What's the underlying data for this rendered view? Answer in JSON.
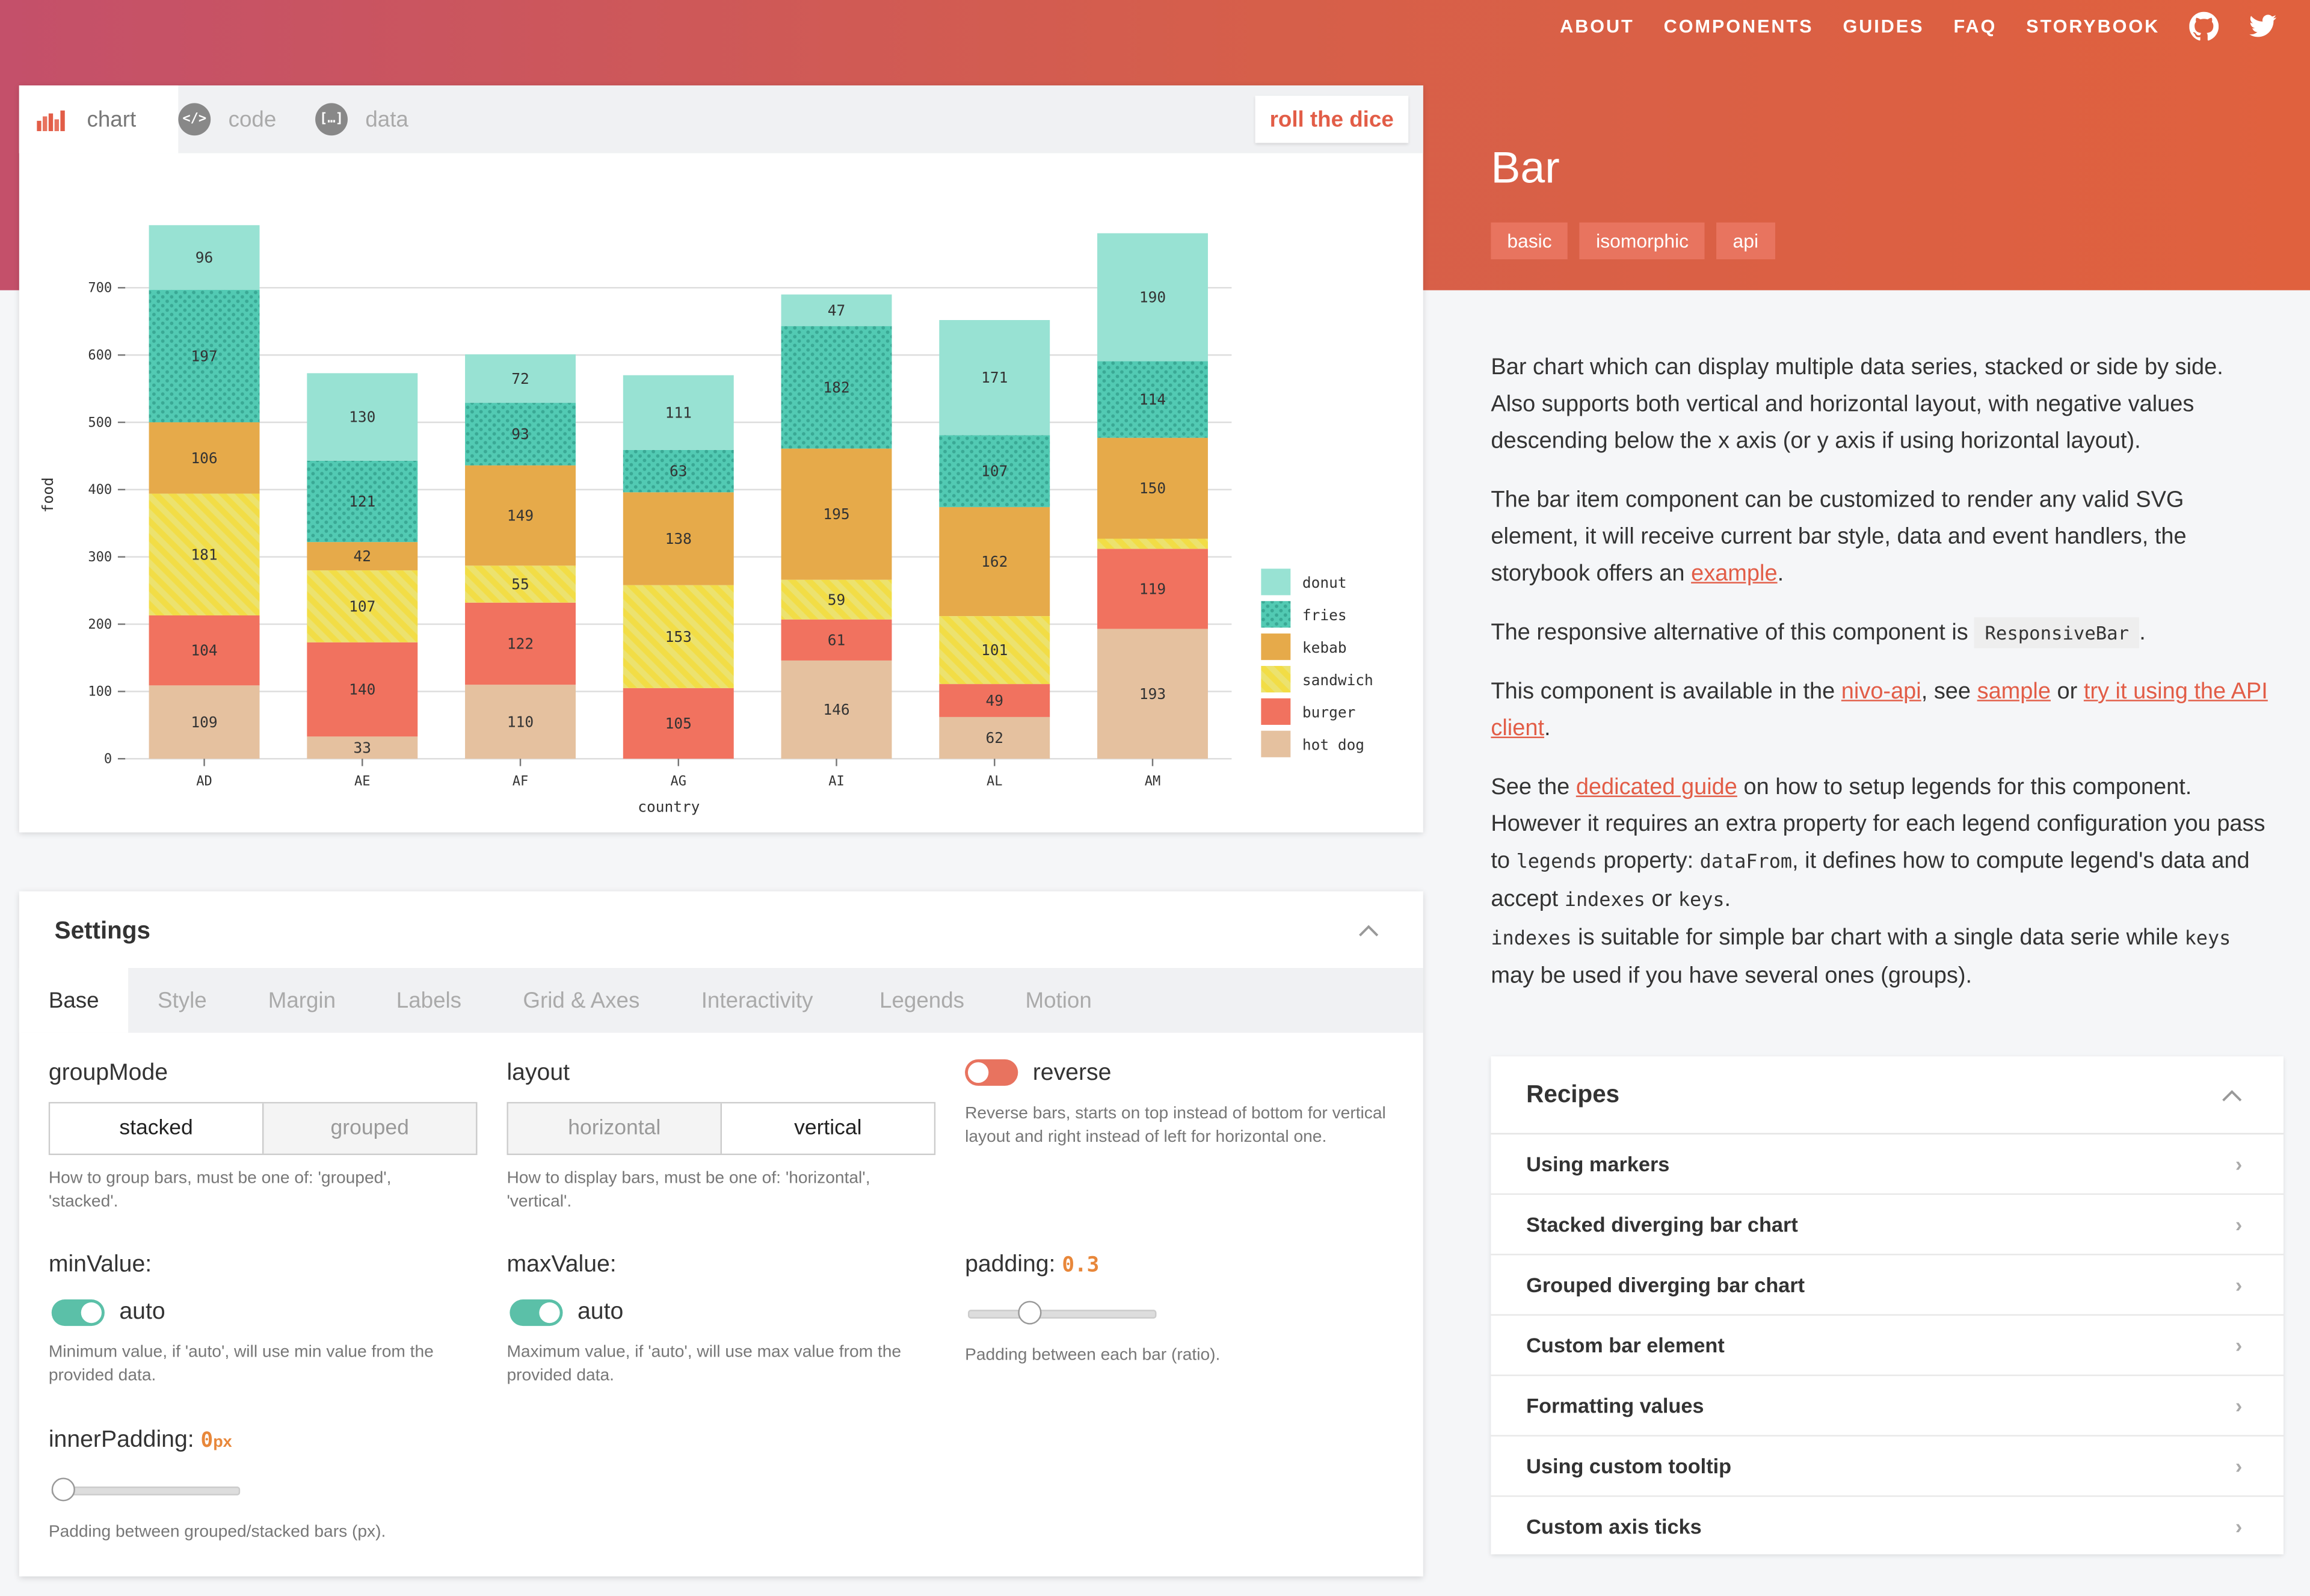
{
  "nav": {
    "links": [
      "ABOUT",
      "COMPONENTS",
      "GUIDES",
      "FAQ",
      "STORYBOOK"
    ],
    "github_icon": "github-icon",
    "twitter_icon": "twitter-icon"
  },
  "card": {
    "tabs": [
      {
        "label": "chart",
        "icon": "bar-chart-icon"
      },
      {
        "label": "code",
        "icon": "code-icon"
      },
      {
        "label": "data",
        "icon": "data-icon"
      }
    ],
    "roll_label": "roll the dice"
  },
  "chart_data": {
    "type": "bar",
    "mode": "stacked",
    "categories": [
      "AD",
      "AE",
      "AF",
      "AG",
      "AI",
      "AL",
      "AM"
    ],
    "series": [
      {
        "name": "hot dog",
        "color": "#e5c19f",
        "values": [
          109,
          33,
          110,
          0,
          146,
          62,
          193
        ]
      },
      {
        "name": "burger",
        "color": "#f1725f",
        "values": [
          104,
          140,
          122,
          105,
          61,
          49,
          119
        ]
      },
      {
        "name": "sandwich",
        "color": "#f2dd46",
        "values": [
          181,
          107,
          55,
          153,
          59,
          101,
          15
        ]
      },
      {
        "name": "kebab",
        "color": "#e6aa4a",
        "values": [
          106,
          42,
          149,
          138,
          195,
          162,
          150
        ]
      },
      {
        "name": "fries",
        "color": "#52cab3",
        "values": [
          197,
          121,
          93,
          63,
          182,
          107,
          114
        ]
      },
      {
        "name": "donut",
        "color": "#98e2d3",
        "values": [
          96,
          130,
          72,
          111,
          47,
          171,
          190
        ]
      }
    ],
    "legend_order": [
      "donut",
      "fries",
      "kebab",
      "sandwich",
      "burger",
      "hot dog"
    ],
    "xlabel": "country",
    "ylabel": "food",
    "yticks": [
      0,
      100,
      200,
      300,
      400,
      500,
      600,
      700
    ],
    "ylim": [
      0,
      800
    ],
    "grid": true,
    "legend_position": "bottom-right"
  },
  "component": {
    "title": "Bar",
    "tags": [
      "basic",
      "isomorphic",
      "api"
    ]
  },
  "description": {
    "p1": "Bar chart which can display multiple data series, stacked or side by side. Also supports both vertical and horizontal layout, with negative values descending below the x axis (or y axis if using horizontal layout).",
    "p2_before": "The bar item component can be customized to render any valid SVG element, it will receive current bar style, data and event handlers, the storybook offers an ",
    "p2_link": "example",
    "p2_after": ".",
    "p3_before": "The responsive alternative of this component is ",
    "p3_code": "ResponsiveBar",
    "p3_after": ".",
    "p4_before": "This component is available in the ",
    "p4_link1": "nivo-api",
    "p4_mid1": ", see ",
    "p4_link2": "sample",
    "p4_mid2": " or ",
    "p4_link3": "try it using the API client",
    "p4_after": ".",
    "p5_a": "See the ",
    "p5_link": "dedicated guide",
    "p5_b": " on how to setup legends for this component. However it requires an extra property for each legend configuration you pass to ",
    "p5_code1": "legends",
    "p5_c": " property: ",
    "p5_code2": "dataFrom",
    "p5_d": ", it defines how to compute legend's data and accept ",
    "p5_code3": "indexes",
    "p5_e": " or ",
    "p5_code4": "keys",
    "p5_f": ".",
    "p6_code1": "indexes",
    "p6_a": " is suitable for simple bar chart with a single data serie while ",
    "p6_code2": "keys",
    "p6_b": " may be used if you have several ones (groups)."
  },
  "recipes": {
    "title": "Recipes",
    "items": [
      "Using markers",
      "Stacked diverging bar chart",
      "Grouped diverging bar chart",
      "Custom bar element",
      "Formatting values",
      "Using custom tooltip",
      "Custom axis ticks"
    ]
  },
  "settings": {
    "title": "Settings",
    "tabs": [
      "Base",
      "Style",
      "Margin",
      "Labels",
      "Grid & Axes",
      "Interactivity",
      "Legends",
      "Motion"
    ],
    "groupMode": {
      "label": "groupMode",
      "options": [
        "stacked",
        "grouped"
      ],
      "selected": "stacked",
      "help": "How to group bars, must be one of: 'grouped', 'stacked'."
    },
    "layout": {
      "label": "layout",
      "options": [
        "horizontal",
        "vertical"
      ],
      "selected": "vertical",
      "help": "How to display bars, must be one of: 'horizontal', 'vertical'."
    },
    "reverse": {
      "label": "reverse",
      "on": false,
      "help": "Reverse bars, starts on top instead of bottom for vertical layout and right instead of left for horizontal one."
    },
    "minValue": {
      "label": "minValue:",
      "toggle_label": "auto",
      "help": "Minimum value, if 'auto', will use min value from the provided data."
    },
    "maxValue": {
      "label": "maxValue:",
      "toggle_label": "auto",
      "help": "Maximum value, if 'auto', will use max value from the provided data."
    },
    "padding": {
      "label": "padding:",
      "value": "0.3",
      "ratio": 0.3,
      "help": "Padding between each bar (ratio)."
    },
    "innerPadding": {
      "label": "innerPadding:",
      "value": "0",
      "unit": "px",
      "ratio": 0,
      "help": "Padding between grouped/stacked bars (px)."
    }
  },
  "colors": {
    "accent": "#e25d47",
    "toggle_on": "#5bc0a8",
    "toggle_off": "#e8735f"
  }
}
